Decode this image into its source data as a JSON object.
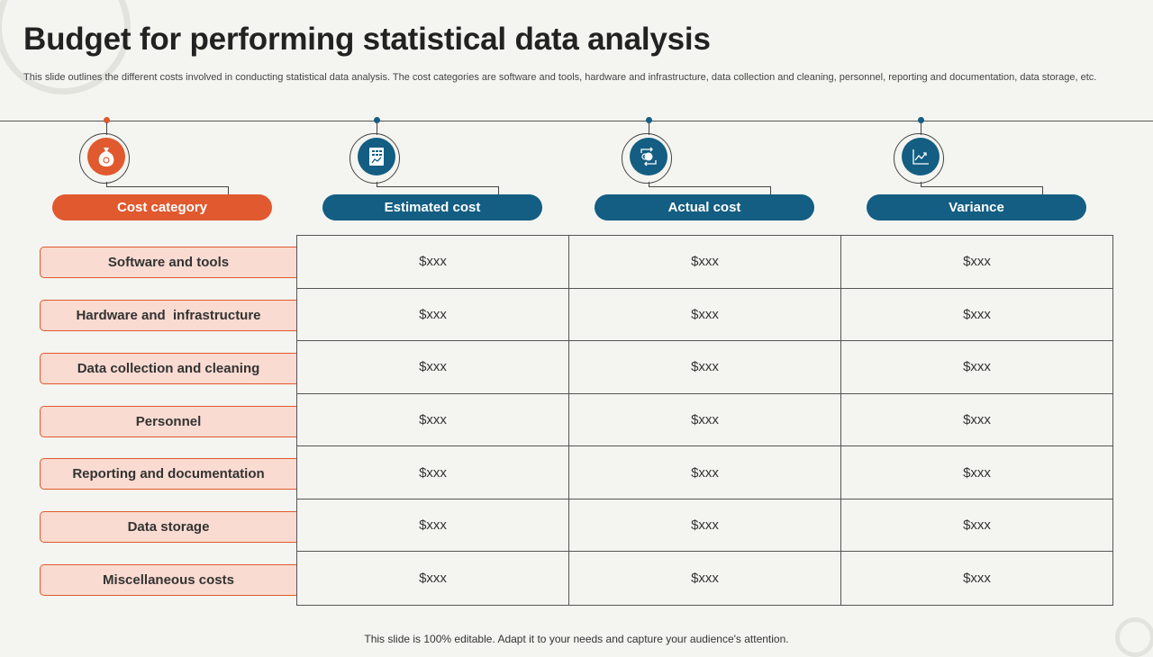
{
  "title": "Budget for performing statistical data analysis",
  "subtitle": "This slide outlines the different costs involved in conducting statistical data analysis. The cost categories are software and tools, hardware and infrastructure, data collection and cleaning, personnel, reporting and documentation, data storage, etc.",
  "columns": [
    {
      "label": "Cost category",
      "icon": "money-bag-icon",
      "color": "#e0592f"
    },
    {
      "label": "Estimated cost",
      "icon": "calculator-report-icon",
      "color": "#135e82"
    },
    {
      "label": "Actual cost",
      "icon": "currency-exchange-icon",
      "color": "#135e82"
    },
    {
      "label": "Variance",
      "icon": "trend-chart-icon",
      "color": "#135e82"
    }
  ],
  "rows": [
    {
      "category": "Software and tools",
      "estimated": "$xxx",
      "actual": "$xxx",
      "variance": "$xxx"
    },
    {
      "category": "Hardware and  infrastructure",
      "estimated": "$xxx",
      "actual": "$xxx",
      "variance": "$xxx"
    },
    {
      "category": "Data collection and cleaning",
      "estimated": "$xxx",
      "actual": "$xxx",
      "variance": "$xxx"
    },
    {
      "category": "Personnel",
      "estimated": "$xxx",
      "actual": "$xxx",
      "variance": "$xxx"
    },
    {
      "category": "Reporting and documentation",
      "estimated": "$xxx",
      "actual": "$xxx",
      "variance": "$xxx"
    },
    {
      "category": "Data storage",
      "estimated": "$xxx",
      "actual": "$xxx",
      "variance": "$xxx"
    },
    {
      "category": "Miscellaneous costs",
      "estimated": "$xxx",
      "actual": "$xxx",
      "variance": "$xxx"
    }
  ],
  "footer": "This slide is 100% editable. Adapt it to your needs and capture your audience's attention.",
  "colors": {
    "accent": "#e0592f",
    "primary": "#135e82",
    "row_fill": "#f9dbd1",
    "background": "#f4f4f0"
  }
}
